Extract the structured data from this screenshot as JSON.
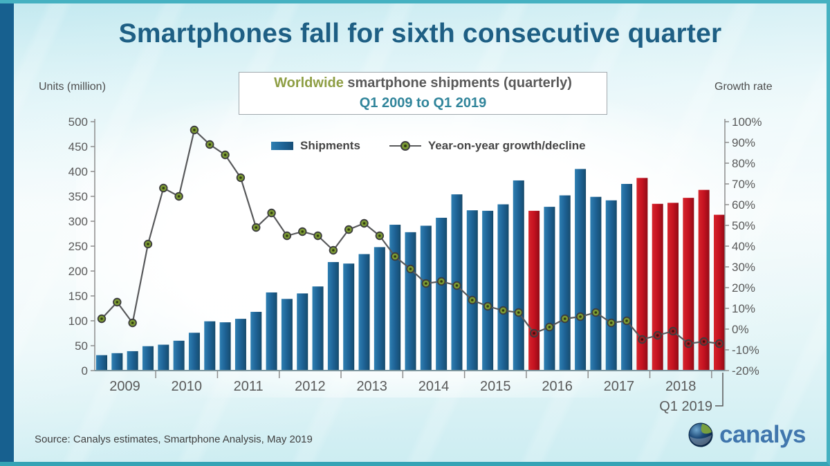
{
  "header": {
    "title": "Smartphones fall for sixth consecutive quarter"
  },
  "subtitle": {
    "highlight": "Worldwide",
    "rest": " smartphone shipments (quarterly)",
    "range": "Q1 2009 to Q1 2019"
  },
  "axis_titles": {
    "left": "Units (million)",
    "right": "Growth rate"
  },
  "legend": {
    "shipments": "Shipments",
    "growth": "Year-on-year growth/decline"
  },
  "source": "Source: Canalys estimates, Smartphone Analysis, May 2019",
  "logo": {
    "text": "canalys"
  },
  "colors": {
    "title": "#1e5f84",
    "frame_teal": "#45b1c1",
    "left_strip_blue": "#17608f",
    "bar_blue": [
      "#2e7fb2",
      "#1e6295",
      "#175177",
      "#123f5e"
    ],
    "bar_red": [
      "#d6252c",
      "#c41220",
      "#9c0d18",
      "#8c0b15"
    ],
    "growth_line": "#58595b",
    "marker_positive": "#7b9a33",
    "marker_negative": "#9e1a1f",
    "marker_ring": "#3d3d3f",
    "axis_text": "#595959",
    "axis_line": "#8c8c8c",
    "baseline": "#7d969e",
    "subtitle_highlight": "#8e9e44",
    "subtitle_range": "#31859b",
    "logo_blue": "#4076ad"
  },
  "chart_data": {
    "type": "bar+line",
    "title": "Worldwide smartphone shipments (quarterly) Q1 2009 to Q1 2019",
    "left_axis": {
      "label": "Units (million)",
      "min": 0,
      "max": 500,
      "step": 50
    },
    "right_axis": {
      "label": "Growth rate",
      "min": -20,
      "max": 100,
      "step": 10,
      "suffix": "%"
    },
    "year_labels": [
      "2009",
      "2010",
      "2011",
      "2012",
      "2013",
      "2014",
      "2015",
      "2016",
      "2017",
      "2018"
    ],
    "last_quarter_label": "Q1 2019",
    "quarters": [
      "Q1 2009",
      "Q2 2009",
      "Q3 2009",
      "Q4 2009",
      "Q1 2010",
      "Q2 2010",
      "Q3 2010",
      "Q4 2010",
      "Q1 2011",
      "Q2 2011",
      "Q3 2011",
      "Q4 2011",
      "Q1 2012",
      "Q2 2012",
      "Q3 2012",
      "Q4 2012",
      "Q1 2013",
      "Q2 2013",
      "Q3 2013",
      "Q4 2013",
      "Q1 2014",
      "Q2 2014",
      "Q3 2014",
      "Q4 2014",
      "Q1 2015",
      "Q2 2015",
      "Q3 2015",
      "Q4 2015",
      "Q1 2016",
      "Q2 2016",
      "Q3 2016",
      "Q4 2016",
      "Q1 2017",
      "Q2 2017",
      "Q3 2017",
      "Q4 2017",
      "Q1 2018",
      "Q2 2018",
      "Q3 2018",
      "Q4 2018",
      "Q1 2019"
    ],
    "series": [
      {
        "name": "Shipments",
        "type": "bar",
        "unit": "million units",
        "values": [
          31,
          35,
          39,
          49,
          52,
          60,
          76,
          99,
          97,
          104,
          118,
          157,
          144,
          155,
          169,
          218,
          215,
          234,
          248,
          293,
          278,
          291,
          307,
          354,
          322,
          321,
          334,
          382,
          321,
          329,
          352,
          405,
          349,
          342,
          375,
          387,
          335,
          337,
          347,
          363,
          313
        ],
        "decline_bars_red": true
      },
      {
        "name": "Year-on-year growth/decline",
        "type": "line",
        "unit": "%",
        "values": [
          5,
          13,
          3,
          41,
          68,
          64,
          96,
          89,
          84,
          73,
          49,
          56,
          45,
          47,
          45,
          38,
          48,
          51,
          45,
          35,
          29,
          22,
          23,
          21,
          14,
          11,
          9,
          8,
          -2,
          1,
          5,
          6,
          8,
          3,
          4,
          -5,
          -3,
          -1,
          -7,
          -6,
          -7
        ]
      }
    ],
    "grid": false,
    "legend_position": "top-center"
  }
}
